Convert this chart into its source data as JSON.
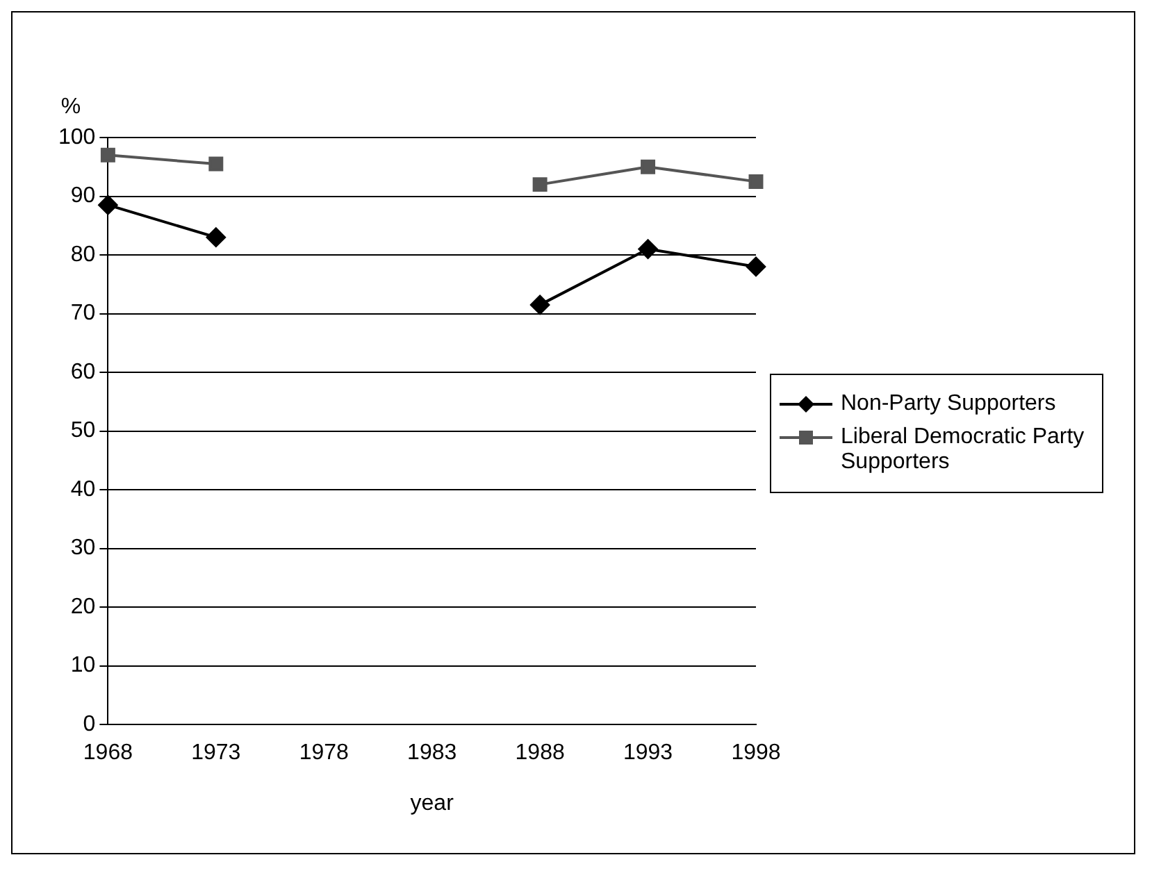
{
  "chart_data": {
    "type": "line",
    "xlabel": "year",
    "ylabel": "%",
    "categories": [
      "1968",
      "1973",
      "1978",
      "1983",
      "1988",
      "1993",
      "1998"
    ],
    "series": [
      {
        "name": "Non-Party Supporters",
        "color": "#000000",
        "marker": "diamond",
        "values": [
          88.5,
          83,
          null,
          null,
          71.5,
          81,
          78
        ]
      },
      {
        "name": "Liberal Democratic Party Supporters",
        "color": "#555555",
        "marker": "square",
        "values": [
          97,
          95.5,
          null,
          null,
          92,
          95,
          92.5
        ]
      }
    ],
    "ylim": [
      0,
      100
    ],
    "yticks": [
      0,
      10,
      20,
      30,
      40,
      50,
      60,
      70,
      80,
      90,
      100
    ],
    "grid": "y",
    "legend": "right"
  }
}
